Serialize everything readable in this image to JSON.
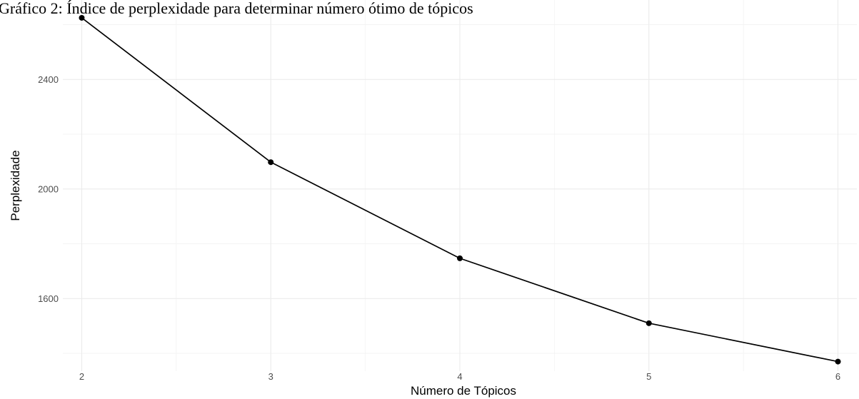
{
  "chart_data": {
    "type": "line",
    "title": "Gráfico 2: Índice de perplexidade para determinar número ótimo de tópicos",
    "xlabel": "Número de Tópicos",
    "ylabel": "Perplexidade",
    "x": [
      2,
      3,
      4,
      5,
      6
    ],
    "series": [
      {
        "values": [
          2625,
          2098,
          1747,
          1510,
          1370
        ]
      }
    ],
    "xlim": [
      1.9,
      6.1
    ],
    "ylim": [
      1335,
      2690
    ],
    "x_ticks": [
      "2",
      "3",
      "4",
      "5",
      "6"
    ],
    "y_ticks": [
      "1600",
      "2000",
      "2400"
    ],
    "grid": true,
    "line_color": "#000000",
    "point_color": "#000000",
    "grid_color": "#ebebeb"
  }
}
